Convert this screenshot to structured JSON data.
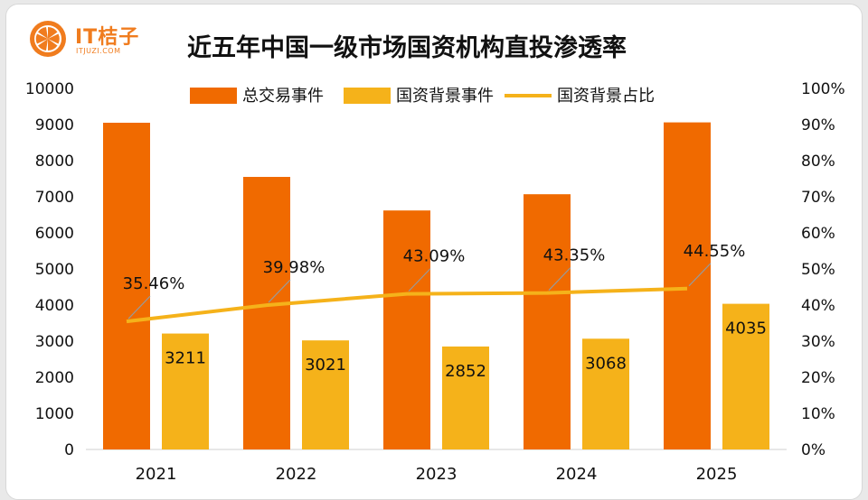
{
  "logo": {
    "brand": "IT桔子",
    "domain": "ITJUZI.COM"
  },
  "chart_data": {
    "type": "bar",
    "title": "近五年中国一级市场国资机构直投渗透率",
    "categories": [
      "2021",
      "2022",
      "2023",
      "2024",
      "2025"
    ],
    "series": [
      {
        "name": "总交易事件",
        "kind": "bar",
        "axis": "left",
        "color": "#f06a00",
        "values": [
          9050,
          7550,
          6620,
          7070,
          9060
        ]
      },
      {
        "name": "国资背景事件",
        "kind": "bar",
        "axis": "left",
        "color": "#f5b21a",
        "values": [
          3211,
          3021,
          2852,
          3068,
          4035
        ]
      },
      {
        "name": "国资背景占比",
        "kind": "line",
        "axis": "right",
        "color": "#f5b21a",
        "values": [
          35.46,
          39.98,
          43.09,
          43.35,
          44.55
        ]
      }
    ],
    "bar_labels": [
      "3211",
      "3021",
      "2852",
      "3068",
      "4035"
    ],
    "line_labels": [
      "35.46%",
      "39.98%",
      "43.09%",
      "43.35%",
      "44.55%"
    ],
    "y_left": {
      "min": 0,
      "max": 10000,
      "step": 1000,
      "ticks": [
        "0",
        "1000",
        "2000",
        "3000",
        "4000",
        "5000",
        "6000",
        "7000",
        "8000",
        "9000",
        "10000"
      ]
    },
    "y_right": {
      "min": 0,
      "max": 100,
      "step": 10,
      "ticks": [
        "0%",
        "10%",
        "20%",
        "30%",
        "40%",
        "50%",
        "60%",
        "70%",
        "80%",
        "90%",
        "100%"
      ]
    },
    "legend_position": "top",
    "grid": false
  }
}
